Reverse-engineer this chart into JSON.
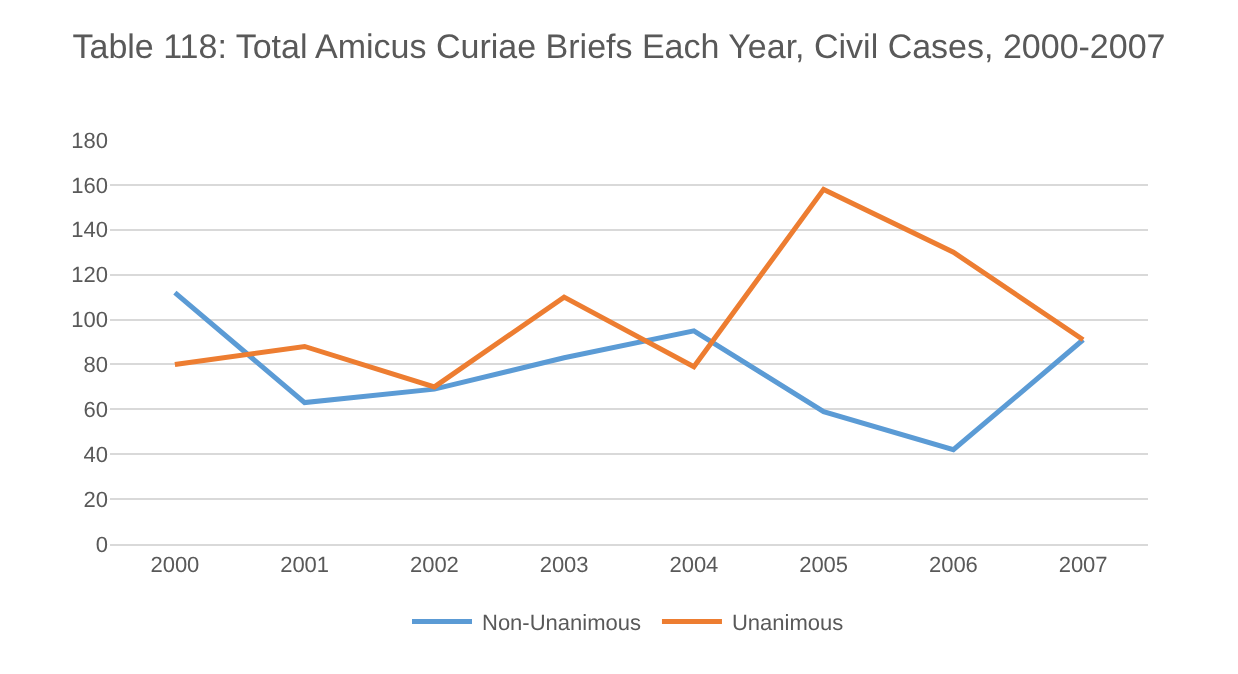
{
  "chart_data": {
    "type": "line",
    "title": "Table 118: Total Amicus Curiae Briefs Each Year, Civil Cases, 2000-2007",
    "categories": [
      "2000",
      "2001",
      "2002",
      "2003",
      "2004",
      "2005",
      "2006",
      "2007"
    ],
    "series": [
      {
        "name": "Non-Unanimous",
        "color": "#5b9bd5",
        "values": [
          112,
          63,
          69,
          83,
          95,
          59,
          42,
          91
        ]
      },
      {
        "name": "Unanimous",
        "color": "#ed7d31",
        "values": [
          80,
          88,
          70,
          110,
          79,
          158,
          130,
          91
        ]
      }
    ],
    "ylim": [
      0,
      180
    ],
    "yticks": [
      0,
      20,
      40,
      60,
      80,
      100,
      120,
      140,
      160,
      180
    ],
    "grid": "y",
    "legend": "bottom",
    "marker": "none",
    "line_style": "solid"
  }
}
